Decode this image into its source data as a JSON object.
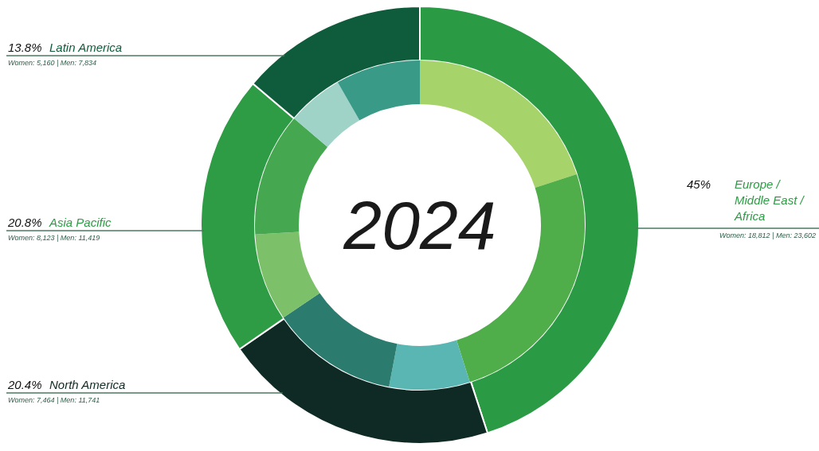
{
  "chart_data": [
    {
      "type": "donut",
      "categories": [
        "Europe / Middle East / Africa",
        "North America",
        "Asia Pacific",
        "Latin America"
      ],
      "values": [
        45,
        20.4,
        20.8,
        13.8
      ],
      "value_labels": [
        "45%",
        "20.4%",
        "20.8%",
        "13.8%"
      ],
      "colors": [
        "#2a9a45",
        "#0f2a24",
        "#2e9b45",
        "#0f5c3c"
      ]
    },
    {
      "type": "donut",
      "title": "2024",
      "categories": [
        null,
        null,
        null,
        null,
        null,
        null,
        null,
        null
      ],
      "values": [
        20.0,
        25.1,
        7.9,
        12.5,
        8.6,
        12.1,
        5.5,
        8.3
      ],
      "annotations": [
        "Women: 18,812 | Men: 23,602",
        "Women: 7,464 | Men: 11,741",
        "Women: 8,123 | Men: 11,419",
        "Women: 5,160 | Men: 7,834"
      ],
      "colors": [
        "#a6d36a",
        "#4fae4a",
        "#5ab6b2",
        "#2b7c6e",
        "#7cc06a",
        "#45a850",
        "#9fd3c8",
        "#3a9a88"
      ]
    }
  ]
}
